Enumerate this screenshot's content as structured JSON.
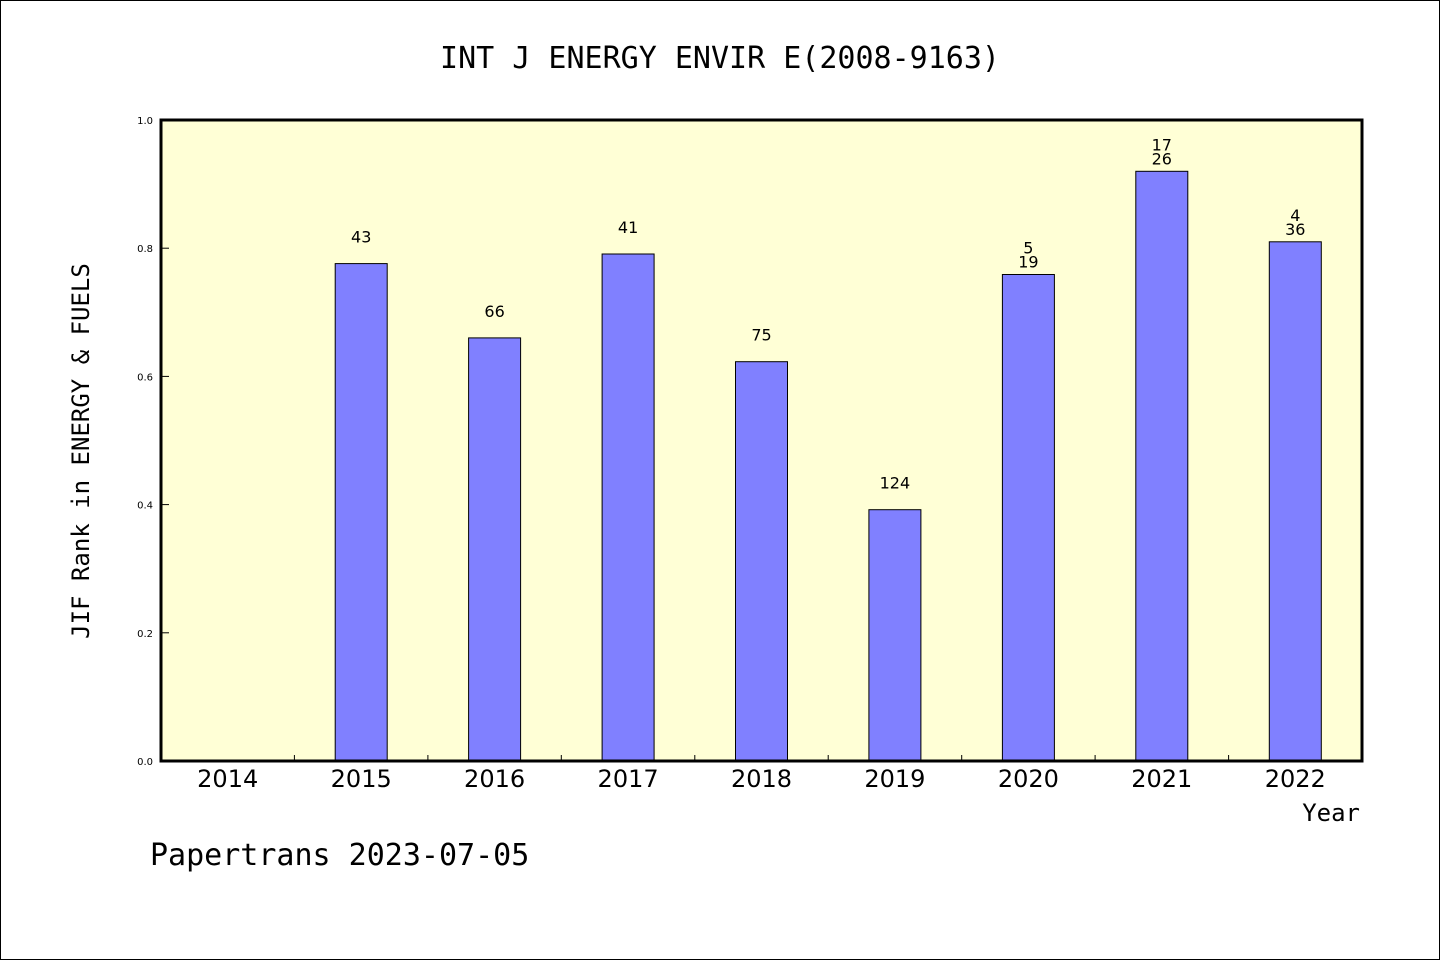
{
  "colors": {
    "plot_background": "#FFFFD6",
    "bar_fill": "#8080FF",
    "bar_stroke": "#000000",
    "axis": "#000000"
  },
  "footer": "Papertrans 2023-07-05",
  "chart_data": {
    "type": "bar",
    "title": "INT J ENERGY ENVIR E(2008-9163)",
    "xlabel": "Year",
    "ylabel": "JIF Rank in ENERGY & FUELS",
    "ylim": [
      0,
      1.0
    ],
    "yticks": [
      "0.0",
      "0.2",
      "0.4",
      "0.6",
      "0.8",
      "1.0"
    ],
    "grid": false,
    "categories": [
      "2014",
      "2015",
      "2016",
      "2017",
      "2018",
      "2019",
      "2020",
      "2021",
      "2022"
    ],
    "values": [
      null,
      0.776,
      0.66,
      0.791,
      0.623,
      0.392,
      0.759,
      0.92,
      0.81
    ],
    "bar_labels": [
      [],
      [
        "43"
      ],
      [
        "66"
      ],
      [
        "41"
      ],
      [
        "75"
      ],
      [
        "124"
      ],
      [
        "5",
        "19"
      ],
      [
        "17",
        "26"
      ],
      [
        "4",
        "36"
      ]
    ]
  }
}
